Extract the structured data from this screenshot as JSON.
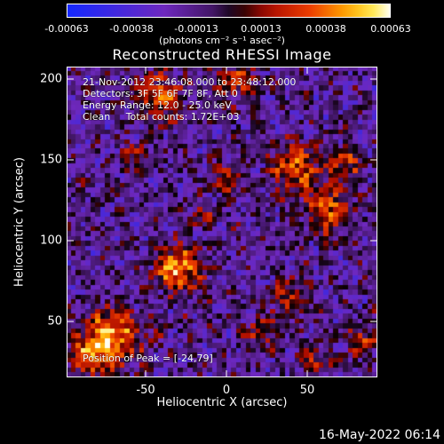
{
  "colorbar": {
    "ticks": [
      "-0.00063",
      "-0.00038",
      "-0.00013",
      "0.00013",
      "0.00038",
      "0.00063"
    ],
    "units": "(photons cm⁻² s⁻¹ asec⁻²)"
  },
  "title": "Reconstructed RHESSI Image",
  "annotations": {
    "line1": "21-Nov-2012 23:46:08.000 to 23:48:12.000",
    "line2": "Detectors: 3F 5F 6F 7F 8F, Att 0",
    "line3": "Energy Range: 12.0 - 25.0 keV",
    "line4": "Clean     Total counts: 1.72E+03",
    "peak": "Position of Peak = [-24,79]"
  },
  "axes": {
    "xlabel": "Heliocentric X (arcsec)",
    "ylabel": "Heliocentric Y (arcsec)",
    "xticks": [
      "-50",
      "0",
      "50"
    ],
    "yticks": [
      "200",
      "150",
      "100",
      "50"
    ],
    "xrange": [
      -95,
      95
    ],
    "yrange": [
      15,
      205
    ]
  },
  "footer_date": "16-May-2022 06:14",
  "colors": {
    "background": "#000000",
    "frame": "#ffffff"
  }
}
